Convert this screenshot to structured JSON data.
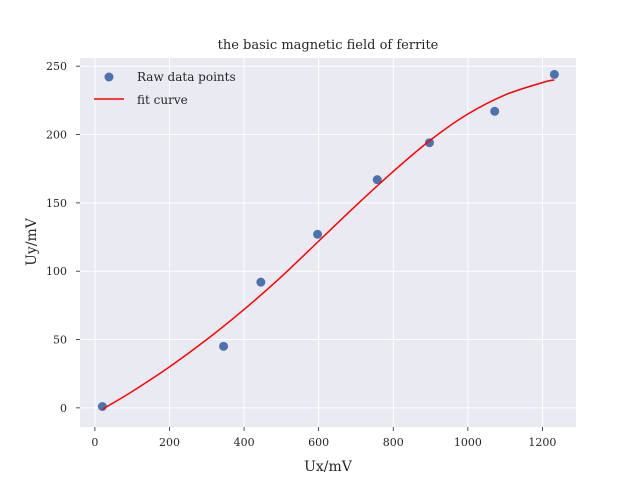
{
  "chart_data": {
    "type": "scatter",
    "title": "the basic magnetic field of ferrite",
    "xlabel": "Ux/mV",
    "ylabel": "Uy/mV",
    "xlim": [
      -40,
      1290
    ],
    "ylim": [
      -14,
      256
    ],
    "xticks": [
      0,
      200,
      400,
      600,
      800,
      1000,
      1200
    ],
    "yticks": [
      0,
      50,
      100,
      150,
      200,
      250
    ],
    "grid": true,
    "background": "#eaeaf2",
    "legend": {
      "placement": "top-left"
    },
    "series": [
      {
        "name": "Raw data points",
        "kind": "scatter",
        "color": "#4c72b0",
        "x": [
          20,
          345,
          445,
          597,
          757,
          897,
          1072,
          1232
        ],
        "y": [
          1,
          45,
          92,
          127,
          167,
          194,
          217,
          244
        ]
      },
      {
        "name": "fit curve",
        "kind": "line",
        "color": "#ff0000",
        "x": [
          20,
          100,
          200,
          300,
          400,
          500,
          600,
          700,
          800,
          900,
          1000,
          1100,
          1200,
          1232
        ],
        "y": [
          -1,
          12,
          30,
          50,
          72,
          96,
          122,
          148,
          173,
          196,
          215,
          229,
          238,
          240
        ]
      }
    ]
  }
}
